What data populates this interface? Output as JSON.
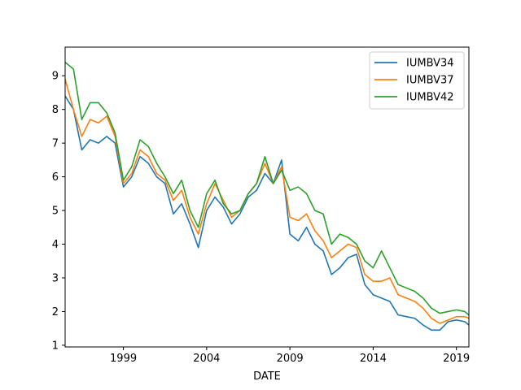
{
  "chart_data": {
    "type": "line",
    "title": "",
    "xlabel": "DATE",
    "ylabel": "",
    "xlim": [
      1995.5,
      2019.75
    ],
    "ylim": [
      0.95,
      9.85
    ],
    "grid": false,
    "legend_position": "top-right",
    "x_ticks": [
      {
        "value": 1999,
        "label": "1999"
      },
      {
        "value": 2004,
        "label": "2004"
      },
      {
        "value": 2009,
        "label": "2009"
      },
      {
        "value": 2014,
        "label": "2014"
      },
      {
        "value": 2019,
        "label": "2019"
      }
    ],
    "y_ticks": [
      {
        "value": 1,
        "label": "1"
      },
      {
        "value": 2,
        "label": "2"
      },
      {
        "value": 3,
        "label": "3"
      },
      {
        "value": 4,
        "label": "4"
      },
      {
        "value": 5,
        "label": "5"
      },
      {
        "value": 6,
        "label": "6"
      },
      {
        "value": 7,
        "label": "7"
      },
      {
        "value": 8,
        "label": "8"
      },
      {
        "value": 9,
        "label": "9"
      }
    ],
    "x": [
      1995.5,
      1996.0,
      1996.5,
      1997.0,
      1997.5,
      1998.0,
      1998.5,
      1999.0,
      1999.5,
      2000.0,
      2000.5,
      2001.0,
      2001.5,
      2002.0,
      2002.5,
      2003.0,
      2003.5,
      2004.0,
      2004.5,
      2005.0,
      2005.5,
      2006.0,
      2006.5,
      2007.0,
      2007.5,
      2008.0,
      2008.5,
      2009.0,
      2009.5,
      2010.0,
      2010.5,
      2011.0,
      2011.5,
      2012.0,
      2012.5,
      2013.0,
      2013.5,
      2014.0,
      2014.5,
      2015.0,
      2015.5,
      2016.0,
      2016.5,
      2017.0,
      2017.5,
      2018.0,
      2018.5,
      2019.0,
      2019.5,
      2019.75
    ],
    "series": [
      {
        "name": "IUMBV34",
        "color": "#1f77b4",
        "values": [
          8.4,
          8.0,
          6.8,
          7.1,
          7.0,
          7.2,
          7.0,
          5.7,
          6.0,
          6.6,
          6.4,
          6.0,
          5.8,
          4.9,
          5.2,
          4.6,
          3.9,
          5.0,
          5.4,
          5.1,
          4.6,
          4.9,
          5.4,
          5.6,
          6.1,
          5.8,
          6.5,
          4.3,
          4.1,
          4.5,
          4.0,
          3.8,
          3.1,
          3.3,
          3.6,
          3.7,
          2.8,
          2.5,
          2.4,
          2.3,
          1.9,
          1.85,
          1.8,
          1.6,
          1.45,
          1.45,
          1.7,
          1.75,
          1.7,
          1.6
        ]
      },
      {
        "name": "IUMBV37",
        "color": "#ff7f0e",
        "values": [
          8.9,
          8.0,
          7.2,
          7.7,
          7.6,
          7.8,
          7.2,
          5.8,
          6.1,
          6.8,
          6.6,
          6.1,
          5.9,
          5.3,
          5.6,
          4.8,
          4.3,
          5.2,
          5.8,
          5.3,
          4.8,
          5.0,
          5.5,
          5.8,
          6.4,
          5.8,
          6.3,
          4.8,
          4.7,
          4.9,
          4.4,
          4.1,
          3.6,
          3.8,
          4.0,
          3.9,
          3.1,
          2.9,
          2.9,
          3.0,
          2.5,
          2.4,
          2.3,
          2.1,
          1.8,
          1.65,
          1.75,
          1.85,
          1.85,
          1.8
        ]
      },
      {
        "name": "IUMBV42",
        "color": "#2ca02c",
        "values": [
          9.4,
          9.2,
          7.7,
          8.2,
          8.2,
          7.9,
          7.3,
          5.9,
          6.3,
          7.1,
          6.9,
          6.4,
          6.0,
          5.5,
          5.9,
          5.0,
          4.5,
          5.5,
          5.9,
          5.2,
          4.9,
          5.0,
          5.5,
          5.8,
          6.6,
          5.8,
          6.2,
          5.6,
          5.7,
          5.5,
          5.0,
          4.9,
          4.0,
          4.3,
          4.2,
          4.0,
          3.5,
          3.3,
          3.8,
          3.3,
          2.8,
          2.7,
          2.6,
          2.4,
          2.1,
          1.95,
          2.0,
          2.05,
          2.0,
          1.9
        ]
      }
    ]
  }
}
